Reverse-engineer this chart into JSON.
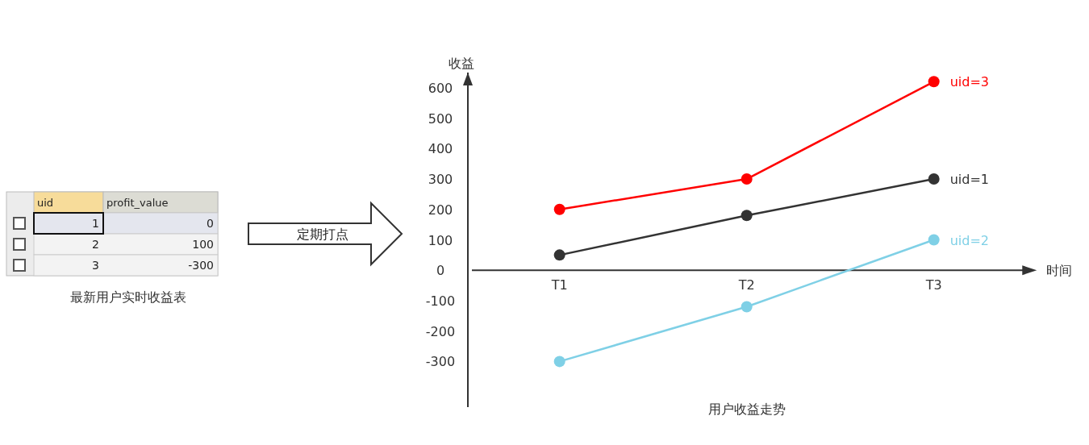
{
  "chart_data": [
    {
      "type": "other",
      "title": "最新用户实时收益表",
      "annotations": [
        "uid",
        "profit_value",
        "1",
        "0",
        "2",
        "100",
        "3",
        "-300"
      ]
    },
    {
      "type": "line",
      "title": "用户收益走势",
      "xlabel": "时间",
      "ylabel": "收益",
      "categories": [
        "T1",
        "T2",
        "T3"
      ],
      "ylim": [
        -450,
        650
      ],
      "yticks": [
        -300,
        -200,
        -100,
        0,
        100,
        200,
        300,
        400,
        500,
        600
      ],
      "marker": "circle",
      "annotations": [
        "定期打点"
      ],
      "series": [
        {
          "name": "uid=3",
          "color": "#ff0000",
          "values": [
            200,
            300,
            620
          ]
        },
        {
          "name": "uid=1",
          "color": "#333333",
          "values": [
            50,
            180,
            300
          ]
        },
        {
          "name": "uid=2",
          "color": "#7fd0e6",
          "values": [
            -300,
            -120,
            100
          ]
        }
      ]
    }
  ]
}
